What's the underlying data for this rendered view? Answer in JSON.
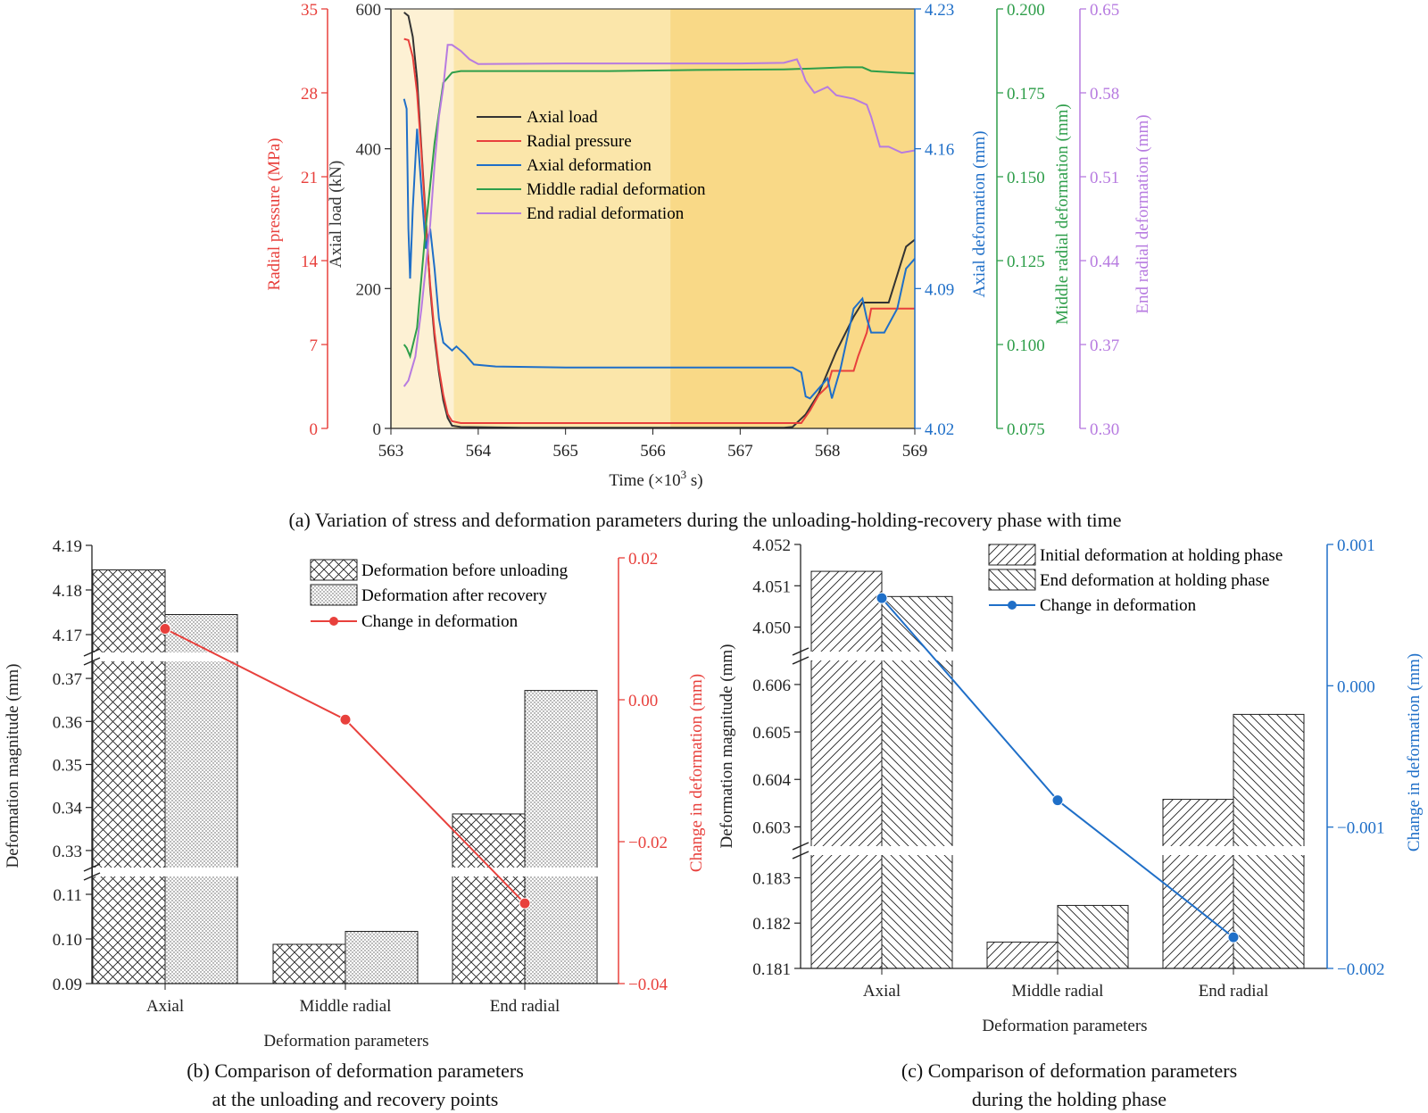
{
  "colors": {
    "axial_load": "#333333",
    "radial_pressure": "#e8403c",
    "axial_deformation": "#1f6fc8",
    "middle_radial": "#2e9e4a",
    "end_radial": "#b77be0",
    "axis": "#222222",
    "phase1": "#fdf1d4",
    "phase2": "#fbe6aa",
    "phase3": "#f9d987",
    "line_b": "#e8403c",
    "line_c": "#1f6fc8"
  },
  "captions": {
    "a": "(a) Variation of stress and deformation parameters during the unloading-holding-recovery phase with time",
    "b_line1": "(b) Comparison of deformation parameters",
    "b_line2": "at the unloading and recovery points",
    "c_line1": "(c) Comparison of deformation parameters",
    "c_line2": "during the holding phase"
  },
  "chart_data": [
    {
      "id": "a",
      "type": "line",
      "xlabel_main": "Time (×10",
      "xlabel_sup": "3",
      "xlabel_end": " s)",
      "xlim": [
        563,
        569
      ],
      "xticks": [
        "563",
        "564",
        "565",
        "566",
        "567",
        "568",
        "569"
      ],
      "axes": {
        "radial_pressure": {
          "label": "Radial pressure (MPa)",
          "ticks": [
            "0",
            "7",
            "14",
            "21",
            "28",
            "35"
          ],
          "range": [
            0,
            35
          ]
        },
        "axial_load": {
          "label": "Axial load (kN)",
          "ticks": [
            "0",
            "200",
            "400",
            "600"
          ],
          "range": [
            0,
            600
          ]
        },
        "axial_deformation": {
          "label": "Axial deformation (mm)",
          "ticks": [
            "4.02",
            "4.09",
            "4.16",
            "4.23"
          ],
          "range": [
            4.02,
            4.23
          ]
        },
        "middle_radial": {
          "label": "Middle radial deformation (mm)",
          "ticks": [
            "0.075",
            "0.100",
            "0.125",
            "0.150",
            "0.175",
            "0.200"
          ],
          "range": [
            0.075,
            0.2
          ]
        },
        "end_radial": {
          "label": "End radial deformation (mm)",
          "ticks": [
            "0.30",
            "0.37",
            "0.44",
            "0.51",
            "0.58",
            "0.65"
          ],
          "range": [
            0.3,
            0.65
          ]
        }
      },
      "legend": [
        "Axial load",
        "Radial pressure",
        "Axial deformation",
        "Middle radial deformation",
        "End radial deformation"
      ],
      "series": [
        {
          "name": "Axial load",
          "axis": "axial_load",
          "points": [
            [
              563.15,
              595
            ],
            [
              563.2,
              590
            ],
            [
              563.25,
              560
            ],
            [
              563.3,
              500
            ],
            [
              563.35,
              400
            ],
            [
              563.4,
              300
            ],
            [
              563.45,
              200
            ],
            [
              563.5,
              130
            ],
            [
              563.55,
              80
            ],
            [
              563.6,
              40
            ],
            [
              563.65,
              15
            ],
            [
              563.7,
              4
            ],
            [
              563.8,
              2
            ],
            [
              564.5,
              1
            ],
            [
              565.5,
              1
            ],
            [
              566.5,
              1
            ],
            [
              567.5,
              1
            ],
            [
              567.6,
              2
            ],
            [
              567.75,
              20
            ],
            [
              567.9,
              50
            ],
            [
              568.1,
              110
            ],
            [
              568.3,
              160
            ],
            [
              568.4,
              180
            ],
            [
              568.7,
              180
            ],
            [
              568.9,
              260
            ],
            [
              569,
              270
            ]
          ]
        },
        {
          "name": "Radial pressure",
          "axis": "radial_pressure",
          "points": [
            [
              563.15,
              32.5
            ],
            [
              563.2,
              32.4
            ],
            [
              563.25,
              31
            ],
            [
              563.3,
              28
            ],
            [
              563.35,
              23
            ],
            [
              563.4,
              17
            ],
            [
              563.45,
              12
            ],
            [
              563.5,
              8
            ],
            [
              563.55,
              5
            ],
            [
              563.6,
              2.8
            ],
            [
              563.65,
              1.2
            ],
            [
              563.7,
              0.6
            ],
            [
              563.8,
              0.45
            ],
            [
              564.5,
              0.45
            ],
            [
              565.5,
              0.45
            ],
            [
              566.5,
              0.45
            ],
            [
              567.5,
              0.45
            ],
            [
              567.7,
              0.45
            ],
            [
              567.8,
              1.5
            ],
            [
              567.9,
              2.8
            ],
            [
              568.0,
              3.5
            ],
            [
              568.05,
              4.8
            ],
            [
              568.3,
              4.8
            ],
            [
              568.35,
              6
            ],
            [
              568.45,
              8
            ],
            [
              568.5,
              10
            ],
            [
              569,
              10
            ]
          ]
        },
        {
          "name": "Axial deformation",
          "axis": "axial_deformation",
          "points": [
            [
              563.15,
              4.185
            ],
            [
              563.18,
              4.18
            ],
            [
              563.2,
              4.12
            ],
            [
              563.22,
              4.095
            ],
            [
              563.25,
              4.13
            ],
            [
              563.3,
              4.17
            ],
            [
              563.35,
              4.14
            ],
            [
              563.4,
              4.11
            ],
            [
              563.45,
              4.12
            ],
            [
              563.5,
              4.1
            ],
            [
              563.55,
              4.075
            ],
            [
              563.6,
              4.063
            ],
            [
              563.7,
              4.059
            ],
            [
              563.75,
              4.061
            ],
            [
              563.85,
              4.057
            ],
            [
              563.95,
              4.052
            ],
            [
              564.2,
              4.051
            ],
            [
              565,
              4.0505
            ],
            [
              566,
              4.0505
            ],
            [
              567,
              4.0505
            ],
            [
              567.6,
              4.0505
            ],
            [
              567.7,
              4.048
            ],
            [
              567.75,
              4.036
            ],
            [
              567.8,
              4.035
            ],
            [
              567.9,
              4.04
            ],
            [
              568.0,
              4.045
            ],
            [
              568.05,
              4.035
            ],
            [
              568.15,
              4.05
            ],
            [
              568.3,
              4.08
            ],
            [
              568.4,
              4.085
            ],
            [
              568.45,
              4.075
            ],
            [
              568.5,
              4.068
            ],
            [
              568.65,
              4.068
            ],
            [
              568.8,
              4.08
            ],
            [
              568.9,
              4.1
            ],
            [
              569,
              4.105
            ]
          ]
        },
        {
          "name": "Middle radial deformation",
          "axis": "middle_radial",
          "points": [
            [
              563.15,
              0.1
            ],
            [
              563.18,
              0.099
            ],
            [
              563.22,
              0.0965
            ],
            [
              563.3,
              0.105
            ],
            [
              563.4,
              0.135
            ],
            [
              563.5,
              0.16
            ],
            [
              563.6,
              0.178
            ],
            [
              563.7,
              0.181
            ],
            [
              563.8,
              0.1815
            ],
            [
              564.5,
              0.1815
            ],
            [
              565.5,
              0.1815
            ],
            [
              566.5,
              0.1818
            ],
            [
              567.5,
              0.182
            ],
            [
              567.8,
              0.1822
            ],
            [
              568.2,
              0.1826
            ],
            [
              568.4,
              0.1826
            ],
            [
              568.5,
              0.1815
            ],
            [
              568.8,
              0.181
            ],
            [
              569,
              0.1808
            ]
          ]
        },
        {
          "name": "End radial deformation",
          "axis": "end_radial",
          "points": [
            [
              563.15,
              0.335
            ],
            [
              563.2,
              0.34
            ],
            [
              563.28,
              0.36
            ],
            [
              563.35,
              0.4
            ],
            [
              563.45,
              0.47
            ],
            [
              563.5,
              0.52
            ],
            [
              563.55,
              0.56
            ],
            [
              563.6,
              0.585
            ],
            [
              563.65,
              0.62
            ],
            [
              563.7,
              0.62
            ],
            [
              563.8,
              0.615
            ],
            [
              563.9,
              0.608
            ],
            [
              564.0,
              0.604
            ],
            [
              565,
              0.6045
            ],
            [
              566,
              0.6045
            ],
            [
              567,
              0.6045
            ],
            [
              567.5,
              0.605
            ],
            [
              567.65,
              0.608
            ],
            [
              567.7,
              0.6
            ],
            [
              567.75,
              0.59
            ],
            [
              567.85,
              0.58
            ],
            [
              568.0,
              0.585
            ],
            [
              568.1,
              0.578
            ],
            [
              568.3,
              0.575
            ],
            [
              568.45,
              0.57
            ],
            [
              568.5,
              0.56
            ],
            [
              568.6,
              0.535
            ],
            [
              568.7,
              0.535
            ],
            [
              568.85,
              0.53
            ],
            [
              569,
              0.532
            ]
          ]
        }
      ]
    },
    {
      "id": "b",
      "type": "bar",
      "xlabel": "Deformation parameters",
      "ylabel": "Deformation magnitude (mm)",
      "y2label": "Change in deformation (mm)",
      "categories": [
        "Axial",
        "Middle radial",
        "End radial"
      ],
      "y_segments": [
        {
          "range": [
            0.09,
            0.115
          ],
          "ticks": [
            "0.09",
            "0.10",
            "0.11"
          ]
        },
        {
          "range": [
            0.325,
            0.375
          ],
          "ticks": [
            "0.33",
            "0.34",
            "0.35",
            "0.36",
            "0.37"
          ]
        },
        {
          "range": [
            4.165,
            4.19
          ],
          "ticks": [
            "4.17",
            "4.18",
            "4.19"
          ]
        }
      ],
      "y2lim": [
        -0.04,
        0.02
      ],
      "y2ticks": [
        "−0.04",
        "−0.02",
        "0.00",
        "0.02"
      ],
      "legend": [
        "Deformation before unloading",
        "Deformation after recovery",
        "Change in deformation"
      ],
      "series": [
        {
          "name": "Deformation before unloading",
          "values": [
            4.1845,
            0.0988,
            0.3385
          ]
        },
        {
          "name": "Deformation after recovery",
          "values": [
            4.1745,
            0.1017,
            0.3672
          ]
        },
        {
          "name": "Change in deformation",
          "axis": "right",
          "values": [
            0.01,
            -0.0028,
            -0.0287
          ]
        }
      ]
    },
    {
      "id": "c",
      "type": "bar",
      "xlabel": "Deformation parameters",
      "ylabel": "Deformation magnitude (mm)",
      "y2label": "Change in deformation (mm)",
      "categories": [
        "Axial",
        "Middle radial",
        "End radial"
      ],
      "y_segments": [
        {
          "range": [
            0.181,
            0.1836
          ],
          "ticks": [
            "0.181",
            "0.182",
            "0.183"
          ]
        },
        {
          "range": [
            0.6025,
            0.6066
          ],
          "ticks": [
            "0.603",
            "0.604",
            "0.605",
            "0.606"
          ]
        },
        {
          "range": [
            4.0493,
            4.052
          ],
          "ticks": [
            "4.050",
            "4.051",
            "4.052"
          ]
        }
      ],
      "y2lim": [
        -0.002,
        0.001
      ],
      "y2ticks": [
        "−0.002",
        "−0.001",
        "0.000",
        "0.001"
      ],
      "legend": [
        "Initial deformation at holding phase",
        "End deformation at holding phase",
        "Change in deformation"
      ],
      "series": [
        {
          "name": "Initial deformation at holding phase",
          "values": [
            4.05135,
            0.18158,
            0.60358
          ]
        },
        {
          "name": "End deformation at holding phase",
          "values": [
            4.05074,
            0.18239,
            0.60537
          ]
        },
        {
          "name": "Change in deformation",
          "axis": "right",
          "values": [
            0.00062,
            -0.00081,
            -0.00178
          ]
        }
      ]
    }
  ]
}
